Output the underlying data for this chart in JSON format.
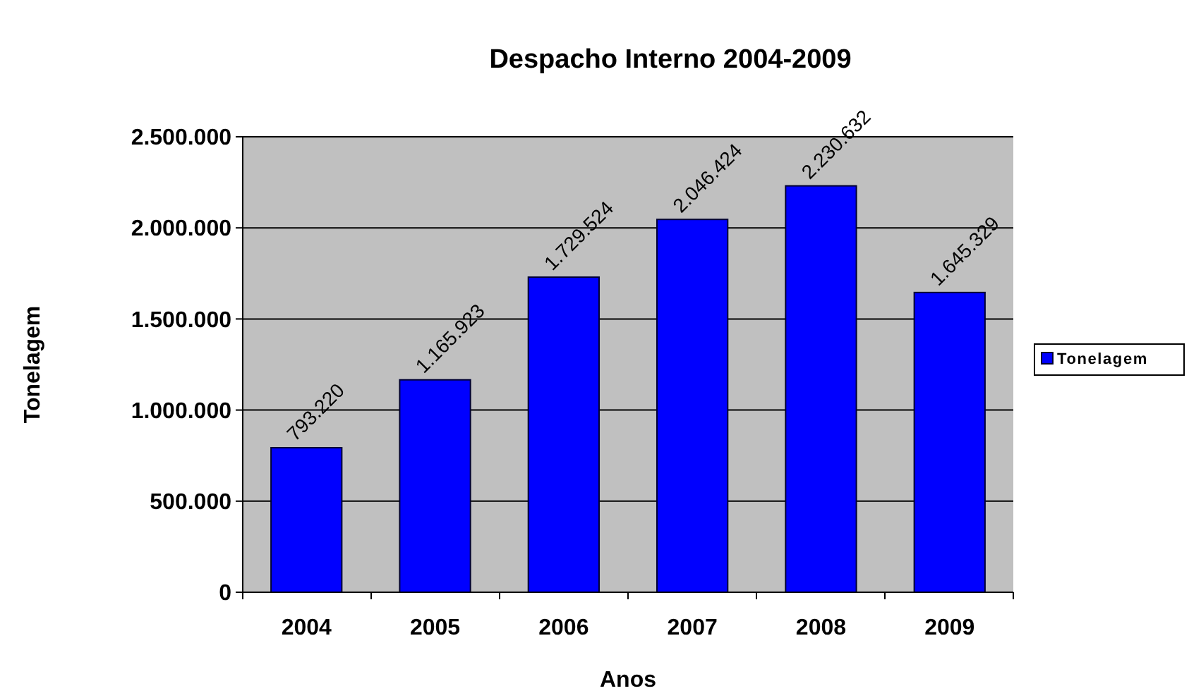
{
  "chart_data": {
    "type": "bar",
    "title": "Despacho Interno 2004-2009",
    "xlabel": "Anos",
    "ylabel": "Tonelagem",
    "categories": [
      "2004",
      "2005",
      "2006",
      "2007",
      "2008",
      "2009"
    ],
    "series": [
      {
        "name": "Tonelagem",
        "color": "#0000ff",
        "values": [
          793220,
          1165923,
          1729524,
          2046424,
          2230632,
          1645329
        ],
        "value_labels": [
          "793.220",
          "1.165.923",
          "1.729.524",
          "2.046.424",
          "2.230.632",
          "1.645.329"
        ]
      }
    ],
    "ylim": [
      0,
      2500000
    ],
    "yticks": [
      0,
      {
        "value": 500000,
        "label": "500.000"
      },
      {
        "value": 1000000,
        "label": "1.000.000"
      },
      {
        "value": 1500000,
        "label": "1.500.000"
      },
      {
        "value": 2000000,
        "label": "2.000.000"
      },
      {
        "value": 2500000,
        "label": "2.500.000"
      }
    ],
    "grid": "y",
    "legend": "right"
  }
}
